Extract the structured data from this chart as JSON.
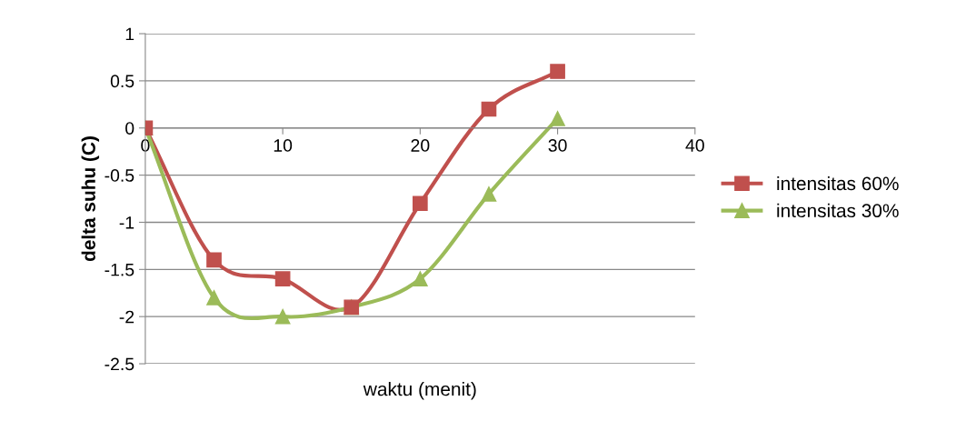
{
  "chart_data": {
    "type": "line",
    "xlabel": "waktu (menit)",
    "ylabel": "delta suhu (C)",
    "x": [
      0,
      5,
      10,
      15,
      20,
      25,
      30
    ],
    "series": [
      {
        "name": "intensitas 60%",
        "color": "#c0504d",
        "marker": "square",
        "values": [
          0,
          -1.4,
          -1.6,
          -1.9,
          -0.8,
          0.2,
          0.6
        ]
      },
      {
        "name": "intensitas 30%",
        "color": "#9bbb59",
        "marker": "triangle",
        "values": [
          0,
          -1.8,
          -2.0,
          -1.9,
          -1.6,
          -0.7,
          0.1
        ]
      }
    ],
    "xlim": [
      0,
      40
    ],
    "xticks": [
      0,
      10,
      20,
      30,
      40
    ],
    "ylim": [
      -2.5,
      1
    ],
    "yticks": [
      -2.5,
      -2,
      -1.5,
      -1,
      -0.5,
      0,
      0.5,
      1
    ],
    "grid": "y",
    "legend": "right",
    "line_style": "solid"
  }
}
